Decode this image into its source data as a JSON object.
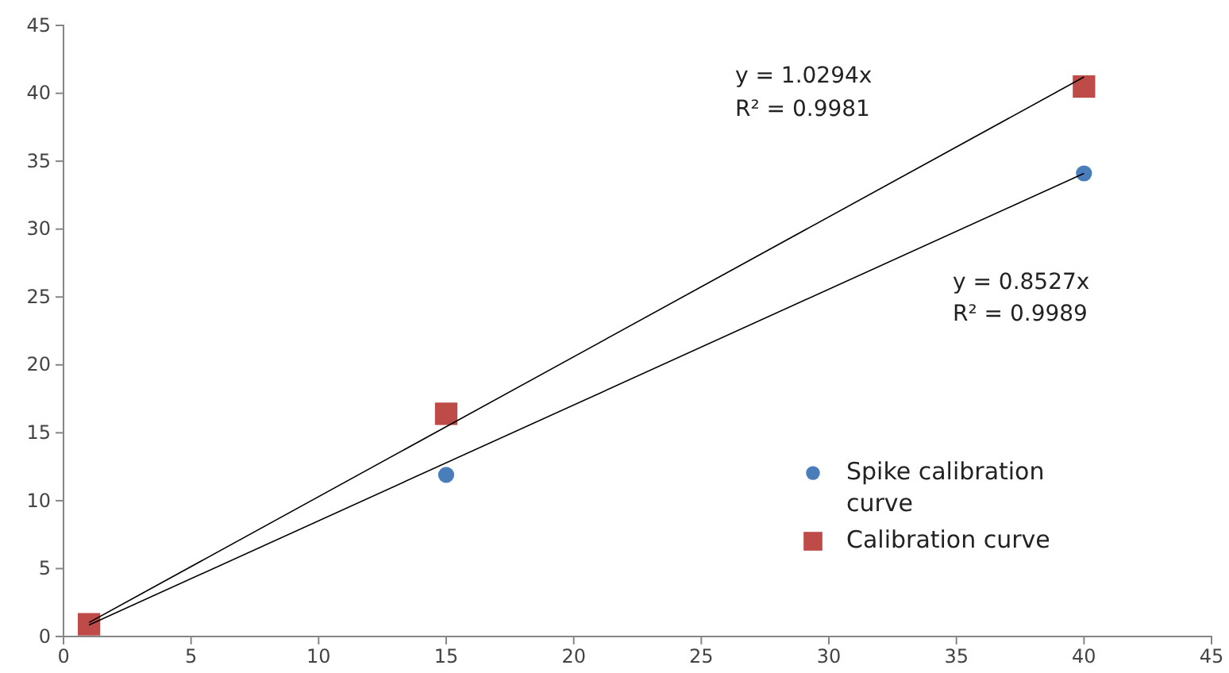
{
  "chart_data": {
    "type": "scatter",
    "xlim": [
      0,
      45
    ],
    "ylim": [
      0,
      45
    ],
    "xticks": [
      0,
      5,
      10,
      15,
      20,
      25,
      30,
      35,
      40,
      45
    ],
    "yticks": [
      0,
      5,
      10,
      15,
      20,
      25,
      30,
      35,
      40,
      45
    ],
    "grid": false,
    "legend": "bottom right",
    "series": [
      {
        "name": "Spike calibration curve",
        "marker": "circle",
        "color": "#4a7ebb",
        "x": [
          15,
          40
        ],
        "values": [
          11.9,
          34.1
        ]
      },
      {
        "name": "Calibration curve",
        "marker": "square",
        "color": "#be4b48",
        "x": [
          1,
          15,
          40
        ],
        "values": [
          0.9,
          16.4,
          40.5
        ]
      },
      {
        "type": "line",
        "color": "#000000",
        "x": [
          1,
          40
        ],
        "values": [
          1.03,
          41.2
        ]
      },
      {
        "type": "line",
        "color": "#000000",
        "x": [
          1,
          40
        ],
        "values": [
          0.85,
          34.1
        ]
      }
    ],
    "annotations": [
      "y = 1.0294x",
      "R² = 0.9981",
      "y = 0.8527x",
      "R² = 0.9989"
    ]
  }
}
